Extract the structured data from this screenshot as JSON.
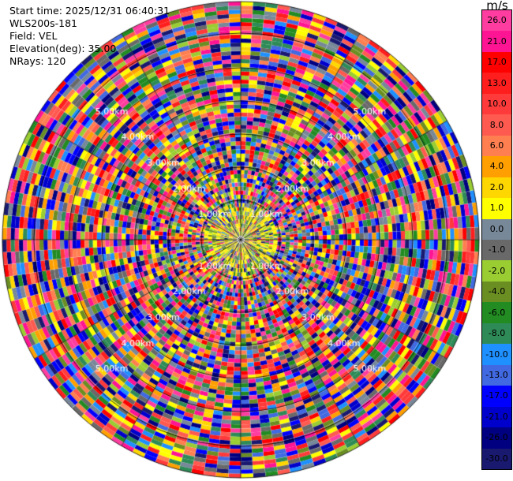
{
  "info": {
    "start_time": "Start time: 2025/12/31 06:40:31",
    "site": "WLS200s-181",
    "field": "Field: VEL",
    "elevation": "Elevation(deg): 35.00",
    "nrays": "NRays: 120"
  },
  "colorbar": {
    "unit": "m/s",
    "ticks": [
      "26.0",
      "21.0",
      "17.0",
      "13.0",
      "10.0",
      "8.0",
      "6.0",
      "4.0",
      "2.0",
      "1.0",
      "0.0",
      "-1.0",
      "-2.0",
      "-4.0",
      "-6.0",
      "-8.0",
      "-10.0",
      "-13.0",
      "-17.0",
      "-21.0",
      "-26.0",
      "-30.0"
    ],
    "colors": [
      "#ff3da0",
      "#ff1493",
      "#ff0000",
      "#ff1e1e",
      "#ff3a3a",
      "#ff5a50",
      "#ff7f50",
      "#ffa000",
      "#ffd700",
      "#ffff00",
      "#778899",
      "#696969",
      "#9acd32",
      "#6b8e23",
      "#228b22",
      "#2e8b57",
      "#1e90ff",
      "#4169e1",
      "#0000ff",
      "#0000cd",
      "#000080",
      "#191970"
    ]
  },
  "range_rings": [
    "1.00km",
    "2.00km",
    "3.00km",
    "4.00km",
    "5.00km"
  ],
  "scan": {
    "nrays": 120,
    "ngates": 58
  }
}
